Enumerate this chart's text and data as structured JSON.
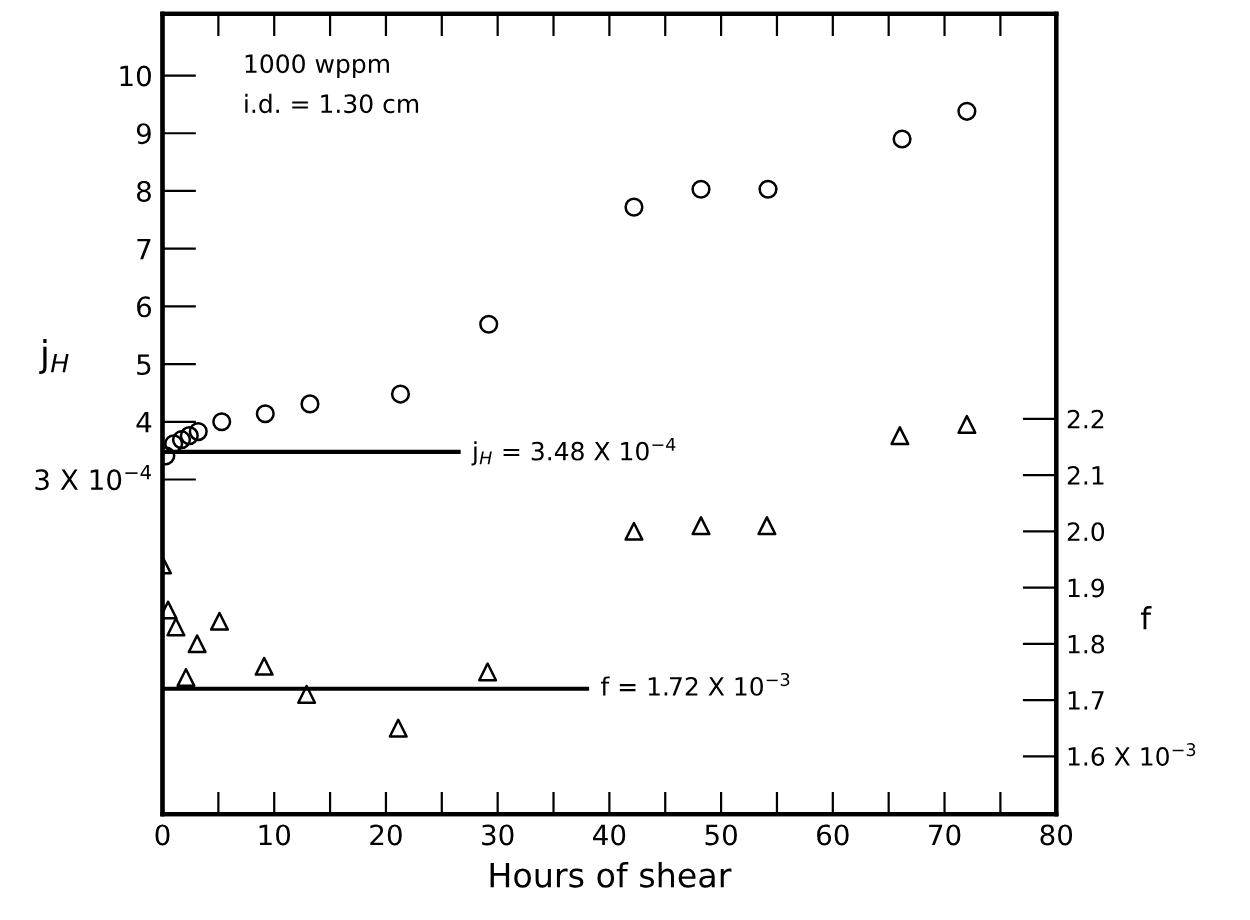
{
  "chart_data": {
    "type": "scatter",
    "xlabel": "Hours of shear",
    "ylabel": "j$_{H}$",
    "y2label": "f",
    "annotations": [
      "1000 wppm",
      "i.d. = 1.30 cm"
    ],
    "xlim": [
      0,
      80
    ],
    "xticks": [
      0,
      {
        "value": 5,
        "label": null
      },
      10,
      {
        "value": 15,
        "label": null
      },
      20,
      {
        "value": 25,
        "label": null
      },
      30,
      {
        "value": 35,
        "label": null
      },
      40,
      {
        "value": 45,
        "label": null
      },
      50,
      {
        "value": 55,
        "label": null
      },
      60,
      {
        "value": 65,
        "label": null
      },
      70,
      {
        "value": 75,
        "label": null
      },
      80
    ],
    "ylim": [
      -2.8,
      11.07
    ],
    "yticks": [
      {
        "value": 3,
        "label": "3 X 10$^{−4}$"
      },
      4,
      5,
      6,
      7,
      8,
      9,
      10
    ],
    "y2lim": [
      1.497,
      2.92
    ],
    "y2ticks": [
      {
        "value": 1.6,
        "label": "1.6 X 10$^{−3}$"
      },
      1.7,
      1.8,
      1.9,
      {
        "value": 2.0,
        "label": "2.0"
      },
      2.1,
      2.2
    ],
    "legend": false,
    "grid": false,
    "series": [
      {
        "marker": "circle",
        "color": "#000000",
        "x": [
          0.3,
          1,
          1.7,
          2.4,
          3.2,
          5.3,
          9.2,
          13.2,
          21.3,
          29.2,
          42.2,
          48.2,
          54.2,
          66.2,
          72
        ],
        "values": [
          3.41,
          3.62,
          3.69,
          3.76,
          3.83,
          4.0,
          4.14,
          4.31,
          4.48,
          5.69,
          7.72,
          8.03,
          8.03,
          8.9,
          9.38
        ]
      },
      {
        "marker": "triangle",
        "color": "#000000",
        "axis": "y2",
        "x": [
          0,
          0.5,
          1.2,
          2.1,
          3.1,
          5.1,
          9.1,
          12.9,
          21.1,
          29.1,
          42.2,
          48.2,
          54.1,
          66,
          72
        ],
        "values": [
          1.94,
          1.86,
          1.83,
          1.74,
          1.8,
          1.84,
          1.76,
          1.71,
          1.65,
          1.75,
          2.0,
          2.01,
          2.01,
          2.17,
          2.19
        ]
      },
      {
        "type": "line",
        "name": "j$_{H}$ = 3.48 X 10$^{−4}$",
        "color": "#000000",
        "line_style": "solid",
        "x": [
          0,
          26.5
        ],
        "values": [
          3.48,
          3.48
        ]
      },
      {
        "type": "line",
        "name": "f = 1.72 X 10$^{−3}$",
        "color": "#000000",
        "line_style": "solid",
        "axis": "y2",
        "x": [
          0,
          38
        ],
        "values": [
          1.72,
          1.72
        ]
      }
    ]
  }
}
